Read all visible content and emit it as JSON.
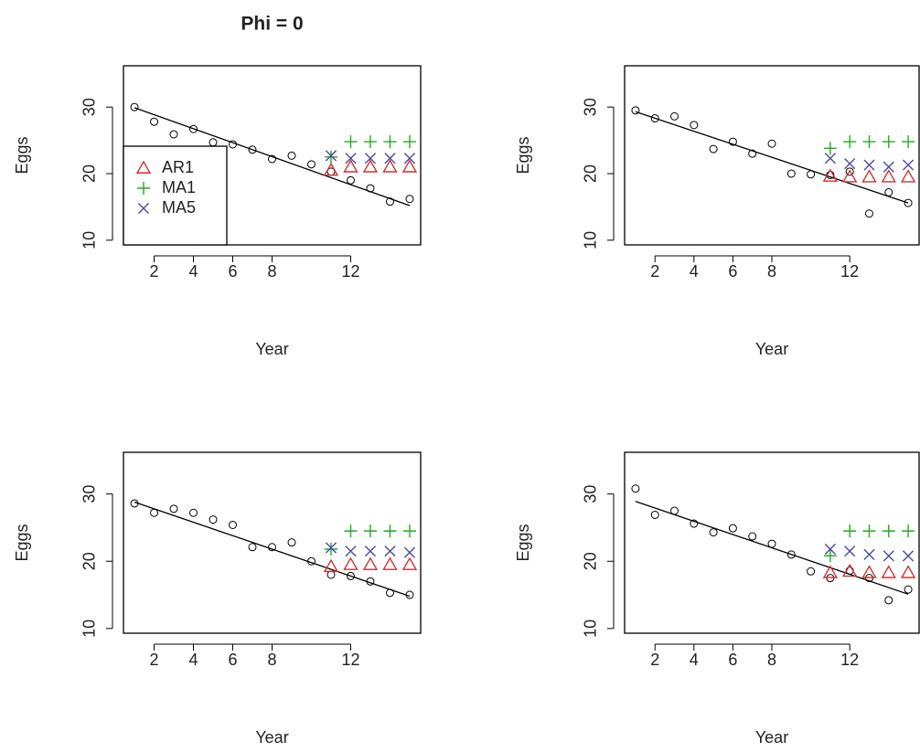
{
  "chart_data": [
    {
      "type": "scatter",
      "title": "Phi = 0",
      "x_label": "Year",
      "y_label": "Eggs",
      "x": [
        1,
        2,
        3,
        4,
        5,
        6,
        7,
        8,
        9,
        10,
        11,
        12,
        13,
        14,
        15
      ],
      "points": [
        30,
        27.8,
        25.9,
        26.7,
        24.7,
        24.4,
        23.6,
        22.2,
        22.7,
        21.4,
        20.3,
        19,
        17.8,
        15.8,
        16.2
      ],
      "trend": {
        "x": [
          1,
          15
        ],
        "values": [
          29.9,
          15.2
        ]
      },
      "forecast_x": [
        11,
        12,
        13,
        14,
        15
      ],
      "series": [
        {
          "name": "AR1",
          "color": "#cc3333",
          "symbol": "triangle",
          "values": [
            20.5,
            21,
            21,
            21,
            21
          ]
        },
        {
          "name": "MA1",
          "color": "#22aa22",
          "symbol": "plus",
          "values": [
            22.5,
            24.8,
            24.8,
            24.8,
            24.8
          ]
        },
        {
          "name": "MA5",
          "color": "#4a4aa0",
          "symbol": "cross",
          "values": [
            22.7,
            22.3,
            22.3,
            22.3,
            22.3
          ]
        }
      ],
      "legend": "topleft",
      "xlim": [
        0.44,
        15.56
      ],
      "ylim": [
        9.3,
        36.2
      ],
      "xticks": [
        2,
        4,
        6,
        8,
        12
      ],
      "yticks": [
        10,
        20,
        30
      ]
    },
    {
      "type": "scatter",
      "x_label": "Year",
      "y_label": "Eggs",
      "x": [
        1,
        2,
        3,
        4,
        5,
        6,
        7,
        8,
        9,
        10,
        11,
        12,
        13,
        14,
        15
      ],
      "points": [
        29.5,
        28.3,
        28.6,
        27.3,
        23.7,
        24.8,
        23,
        24.5,
        20,
        19.9,
        19.8,
        20.3,
        14,
        17.2,
        15.6
      ],
      "trend": {
        "x": [
          1,
          15
        ],
        "values": [
          29.3,
          15.6
        ]
      },
      "forecast_x": [
        11,
        12,
        13,
        14,
        15
      ],
      "series": [
        {
          "color": "#cc3333",
          "symbol": "triangle",
          "values": [
            19.6,
            19.5,
            19.5,
            19.5,
            19.5
          ]
        },
        {
          "color": "#22aa22",
          "symbol": "plus",
          "values": [
            23.8,
            24.8,
            24.8,
            24.8,
            24.8
          ]
        },
        {
          "color": "#4a4aa0",
          "symbol": "cross",
          "values": [
            22.3,
            21.5,
            21.3,
            21,
            21.3
          ]
        }
      ],
      "xlim": [
        0.44,
        15.56
      ],
      "ylim": [
        9.3,
        36.2
      ],
      "xticks": [
        2,
        4,
        6,
        8,
        12
      ],
      "yticks": [
        10,
        20,
        30
      ]
    },
    {
      "type": "scatter",
      "x_label": "Year",
      "y_label": "Eggs",
      "x": [
        1,
        2,
        3,
        4,
        5,
        6,
        7,
        8,
        9,
        10,
        11,
        12,
        13,
        14,
        15
      ],
      "points": [
        28.6,
        27.2,
        27.8,
        27.2,
        26.2,
        25.4,
        22.1,
        22.1,
        22.8,
        20,
        18,
        17.8,
        17,
        15.3,
        15
      ],
      "trend": {
        "x": [
          1,
          15
        ],
        "values": [
          28.8,
          14.8
        ]
      },
      "forecast_x": [
        11,
        12,
        13,
        14,
        15
      ],
      "series": [
        {
          "color": "#cc3333",
          "symbol": "triangle",
          "values": [
            19.2,
            19.5,
            19.5,
            19.5,
            19.5
          ]
        },
        {
          "color": "#22aa22",
          "symbol": "plus",
          "values": [
            21.8,
            24.5,
            24.5,
            24.5,
            24.5
          ]
        },
        {
          "color": "#4a4aa0",
          "symbol": "cross",
          "values": [
            22,
            21.5,
            21.5,
            21.5,
            21.3
          ]
        }
      ],
      "xlim": [
        0.44,
        15.56
      ],
      "ylim": [
        9.3,
        36.2
      ],
      "xticks": [
        2,
        4,
        6,
        8,
        12
      ],
      "yticks": [
        10,
        20,
        30
      ]
    },
    {
      "type": "scatter",
      "x_label": "Year",
      "y_label": "Eggs",
      "x": [
        1,
        2,
        3,
        4,
        5,
        6,
        7,
        8,
        9,
        10,
        11,
        12,
        13,
        14,
        15
      ],
      "points": [
        30.8,
        26.9,
        27.5,
        25.6,
        24.3,
        24.9,
        23.7,
        22.6,
        21,
        18.5,
        17.5,
        18.6,
        17.5,
        14.2,
        15.8
      ],
      "trend": {
        "x": [
          1,
          15
        ],
        "values": [
          28.9,
          15.1
        ]
      },
      "forecast_x": [
        11,
        12,
        13,
        14,
        15
      ],
      "series": [
        {
          "color": "#cc3333",
          "symbol": "triangle",
          "values": [
            18.3,
            18.5,
            18.3,
            18.3,
            18.3
          ]
        },
        {
          "color": "#22aa22",
          "symbol": "plus",
          "values": [
            20.8,
            24.5,
            24.5,
            24.5,
            24.5
          ]
        },
        {
          "color": "#4a4aa0",
          "symbol": "cross",
          "values": [
            21.8,
            21.5,
            21,
            20.8,
            20.8
          ]
        }
      ],
      "xlim": [
        0.44,
        15.56
      ],
      "ylim": [
        9.3,
        36.2
      ],
      "xticks": [
        2,
        4,
        6,
        8,
        12
      ],
      "yticks": [
        10,
        20,
        30
      ]
    }
  ]
}
